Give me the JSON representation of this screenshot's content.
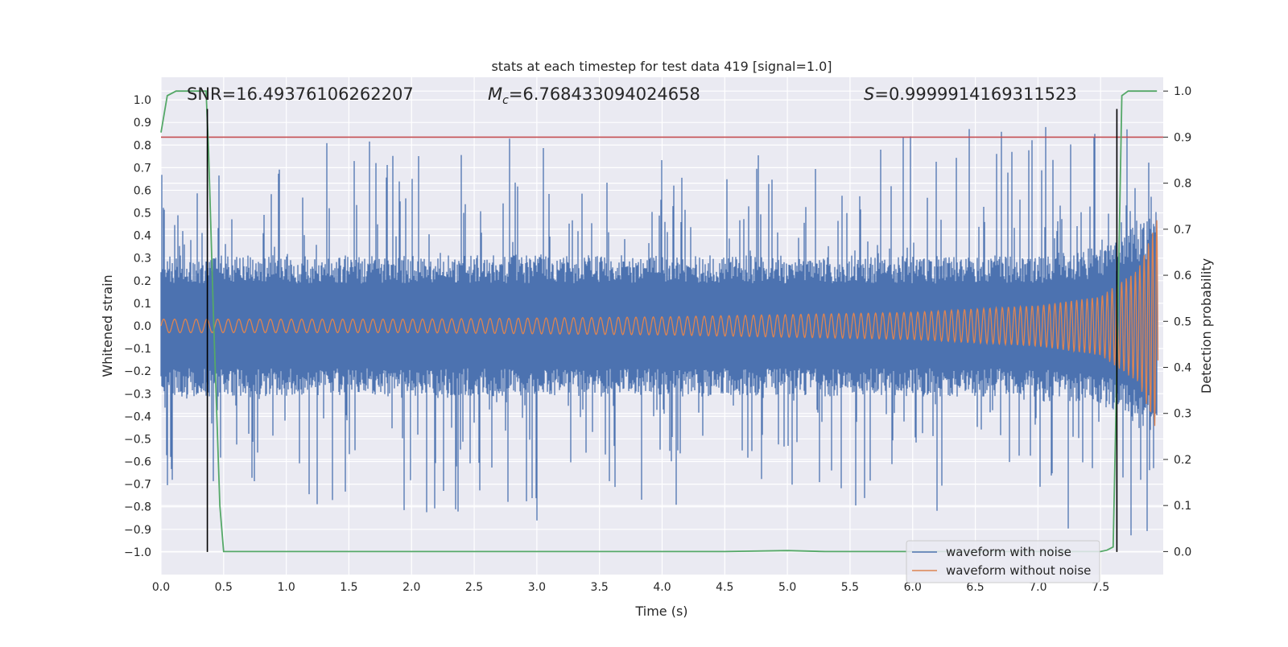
{
  "chart_data": {
    "type": "line",
    "title": "stats at each timestep for test data 419 [signal=1.0]",
    "xlabel": "Time (s)",
    "ylabel": "Whitened strain",
    "y2label": "Detection probability",
    "xlim": [
      0.0,
      8.0
    ],
    "ylim": [
      -1.1,
      1.1
    ],
    "y2lim": [
      -0.05,
      1.03
    ],
    "x_ticks": [
      "0.0",
      "0.5",
      "1.0",
      "1.5",
      "2.0",
      "2.5",
      "3.0",
      "3.5",
      "4.0",
      "4.5",
      "5.0",
      "5.5",
      "6.0",
      "6.5",
      "7.0",
      "7.5"
    ],
    "y_ticks": [
      "1.0",
      "0.9",
      "0.8",
      "0.7",
      "0.6",
      "0.5",
      "0.4",
      "0.3",
      "0.2",
      "0.1",
      "0.0",
      "-0.1",
      "-0.2",
      "-0.3",
      "-0.4",
      "-0.5",
      "-0.6",
      "-0.7",
      "-0.8",
      "-0.9",
      "-1.0"
    ],
    "y2_ticks": [
      "1.0",
      "0.9",
      "0.8",
      "0.7",
      "0.6",
      "0.5",
      "0.4",
      "0.3",
      "0.2",
      "0.1",
      "0.0"
    ],
    "grid": true,
    "legend_position": "lower-right",
    "annotations": {
      "snr": "SNR=16.49376106262207",
      "mc_symbol": "M",
      "mc_sub": "c",
      "mc_value": "=6.768433094024658",
      "s_symbol": "S",
      "s_value": "=0.9999914169311523"
    },
    "series": [
      {
        "name": "waveform with noise",
        "color": "#4c72b0",
        "axis": "left",
        "envelope": {
          "x": [
            0.0,
            1.0,
            2.0,
            3.0,
            4.0,
            5.0,
            6.0,
            7.0,
            7.5,
            7.95
          ],
          "typical_abs": [
            0.25,
            0.25,
            0.25,
            0.25,
            0.25,
            0.25,
            0.25,
            0.25,
            0.28,
            0.4
          ],
          "peaks_abs": [
            0.7,
            0.8,
            0.83,
            0.87,
            0.8,
            0.75,
            0.85,
            0.9,
            0.93,
            0.95
          ]
        }
      },
      {
        "name": "waveform without noise",
        "color": "#dd8452",
        "axis": "left",
        "envelope": {
          "x": [
            0.0,
            2.0,
            4.0,
            5.0,
            6.0,
            7.0,
            7.5,
            7.8,
            7.95
          ],
          "amplitude": [
            0.03,
            0.03,
            0.04,
            0.05,
            0.06,
            0.09,
            0.13,
            0.25,
            0.47
          ]
        }
      },
      {
        "name": "detection probability",
        "color": "#55a868",
        "axis": "right",
        "x": [
          0.0,
          0.05,
          0.12,
          0.36,
          0.38,
          0.42,
          0.47,
          0.5,
          4.5,
          5.0,
          5.3,
          7.5,
          7.55,
          7.6,
          7.63,
          7.67,
          7.72,
          7.8,
          7.95
        ],
        "y": [
          0.91,
          0.99,
          1.0,
          1.0,
          0.87,
          0.5,
          0.1,
          0.0,
          0.0,
          0.002,
          0.0,
          0.0,
          0.003,
          0.01,
          0.4,
          0.99,
          1.0,
          1.0,
          1.0
        ]
      },
      {
        "name": "threshold",
        "color": "#c44e52",
        "axis": "right",
        "x": [
          0.0,
          7.95
        ],
        "y": [
          0.9,
          0.9
        ]
      }
    ],
    "vertical_lines": {
      "color": "#000000",
      "x": [
        0.37,
        7.63
      ],
      "y_range": [
        -1.0,
        0.96
      ]
    }
  }
}
